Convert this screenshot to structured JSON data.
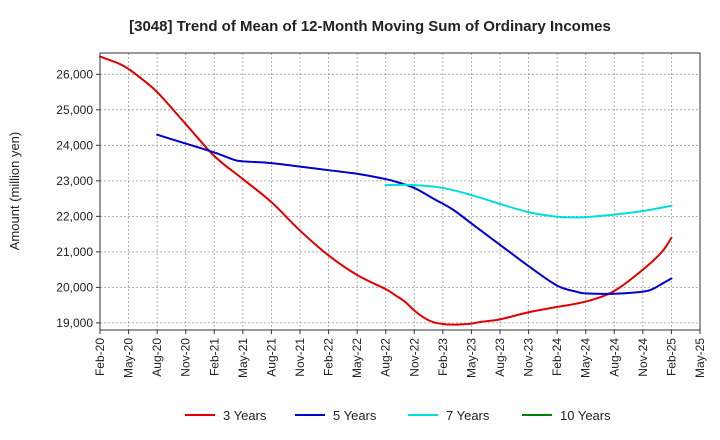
{
  "chart_data": {
    "type": "line",
    "title": "[3048]  Trend of Mean of 12-Month Moving Sum of Ordinary Incomes",
    "xlabel": "",
    "ylabel": "Amount (million yen)",
    "ylim": [
      18800,
      26600
    ],
    "y_ticks": [
      19000,
      20000,
      21000,
      22000,
      23000,
      24000,
      25000,
      26000
    ],
    "y_tick_labels": [
      "19,000",
      "20,000",
      "21,000",
      "22,000",
      "23,000",
      "24,000",
      "25,000",
      "26,000"
    ],
    "x_tick_labels": [
      "Feb-20",
      "May-20",
      "Aug-20",
      "Nov-20",
      "Feb-21",
      "May-21",
      "Aug-21",
      "Nov-21",
      "Feb-22",
      "May-22",
      "Aug-22",
      "Nov-22",
      "Feb-23",
      "May-23",
      "Aug-23",
      "Nov-23",
      "Feb-24",
      "May-24",
      "Aug-24",
      "Nov-24",
      "Feb-25",
      "May-25"
    ],
    "x_range": [
      0,
      63
    ],
    "grid": true,
    "legend_position": "bottom",
    "series": [
      {
        "name": "3 Years",
        "color": "#e00000",
        "x": [
          0,
          2,
          3,
          4,
          6,
          9,
          12,
          15,
          18,
          21,
          24,
          27,
          30,
          31,
          32,
          33,
          34,
          35,
          36,
          37,
          38,
          39,
          40,
          42,
          45,
          48,
          51,
          54,
          57,
          59,
          60
        ],
        "values": [
          26500,
          26300,
          26150,
          25950,
          25500,
          24600,
          23700,
          23050,
          22400,
          21600,
          20900,
          20350,
          19950,
          19780,
          19600,
          19350,
          19150,
          19020,
          18970,
          18950,
          18960,
          18980,
          19030,
          19100,
          19300,
          19450,
          19600,
          19900,
          20500,
          21000,
          21400
        ]
      },
      {
        "name": "5 Years",
        "color": "#0000cc",
        "x": [
          6,
          9,
          12,
          14,
          15,
          18,
          21,
          24,
          27,
          30,
          31,
          33,
          35,
          37,
          39,
          42,
          45,
          48,
          50,
          51,
          54,
          57,
          58,
          59,
          60
        ],
        "values": [
          24300,
          24050,
          23800,
          23600,
          23550,
          23500,
          23400,
          23300,
          23200,
          23050,
          22980,
          22800,
          22500,
          22200,
          21800,
          21200,
          20600,
          20050,
          19880,
          19830,
          19820,
          19880,
          19950,
          20100,
          20250
        ]
      },
      {
        "name": "7 Years",
        "color": "#00dddd",
        "x": [
          30,
          33,
          36,
          39,
          42,
          45,
          48,
          50,
          51,
          54,
          57,
          60
        ],
        "values": [
          22880,
          22880,
          22800,
          22600,
          22350,
          22120,
          21990,
          21970,
          21980,
          22050,
          22150,
          22300
        ]
      },
      {
        "name": "10 Years",
        "color": "#008000",
        "x": [],
        "values": []
      }
    ]
  }
}
